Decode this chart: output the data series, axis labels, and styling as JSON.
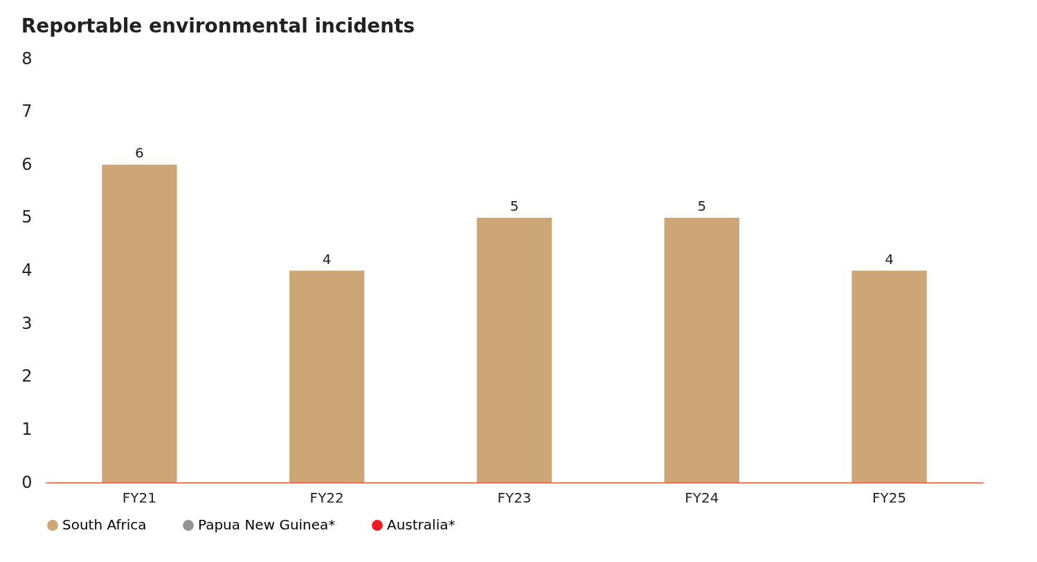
{
  "chart_data": {
    "type": "bar",
    "title": "Reportable environmental incidents",
    "categories": [
      "FY21",
      "FY22",
      "FY23",
      "FY24",
      "FY25"
    ],
    "series": [
      {
        "name": "South Africa",
        "color": "#cca677",
        "values": [
          6,
          4,
          5,
          5,
          4
        ]
      },
      {
        "name": "Papua New Guinea*",
        "color": "#939598",
        "values": [
          null,
          null,
          null,
          null,
          null
        ]
      },
      {
        "name": "Australia*",
        "color": "#ed1c24",
        "values": [
          null,
          null,
          null,
          null,
          null
        ]
      }
    ],
    "ylim": [
      0,
      8
    ],
    "yticks": [
      0,
      1,
      2,
      3,
      4,
      5,
      6,
      7,
      8
    ],
    "grid": false,
    "data_labels": true,
    "legend": "bottom left"
  }
}
